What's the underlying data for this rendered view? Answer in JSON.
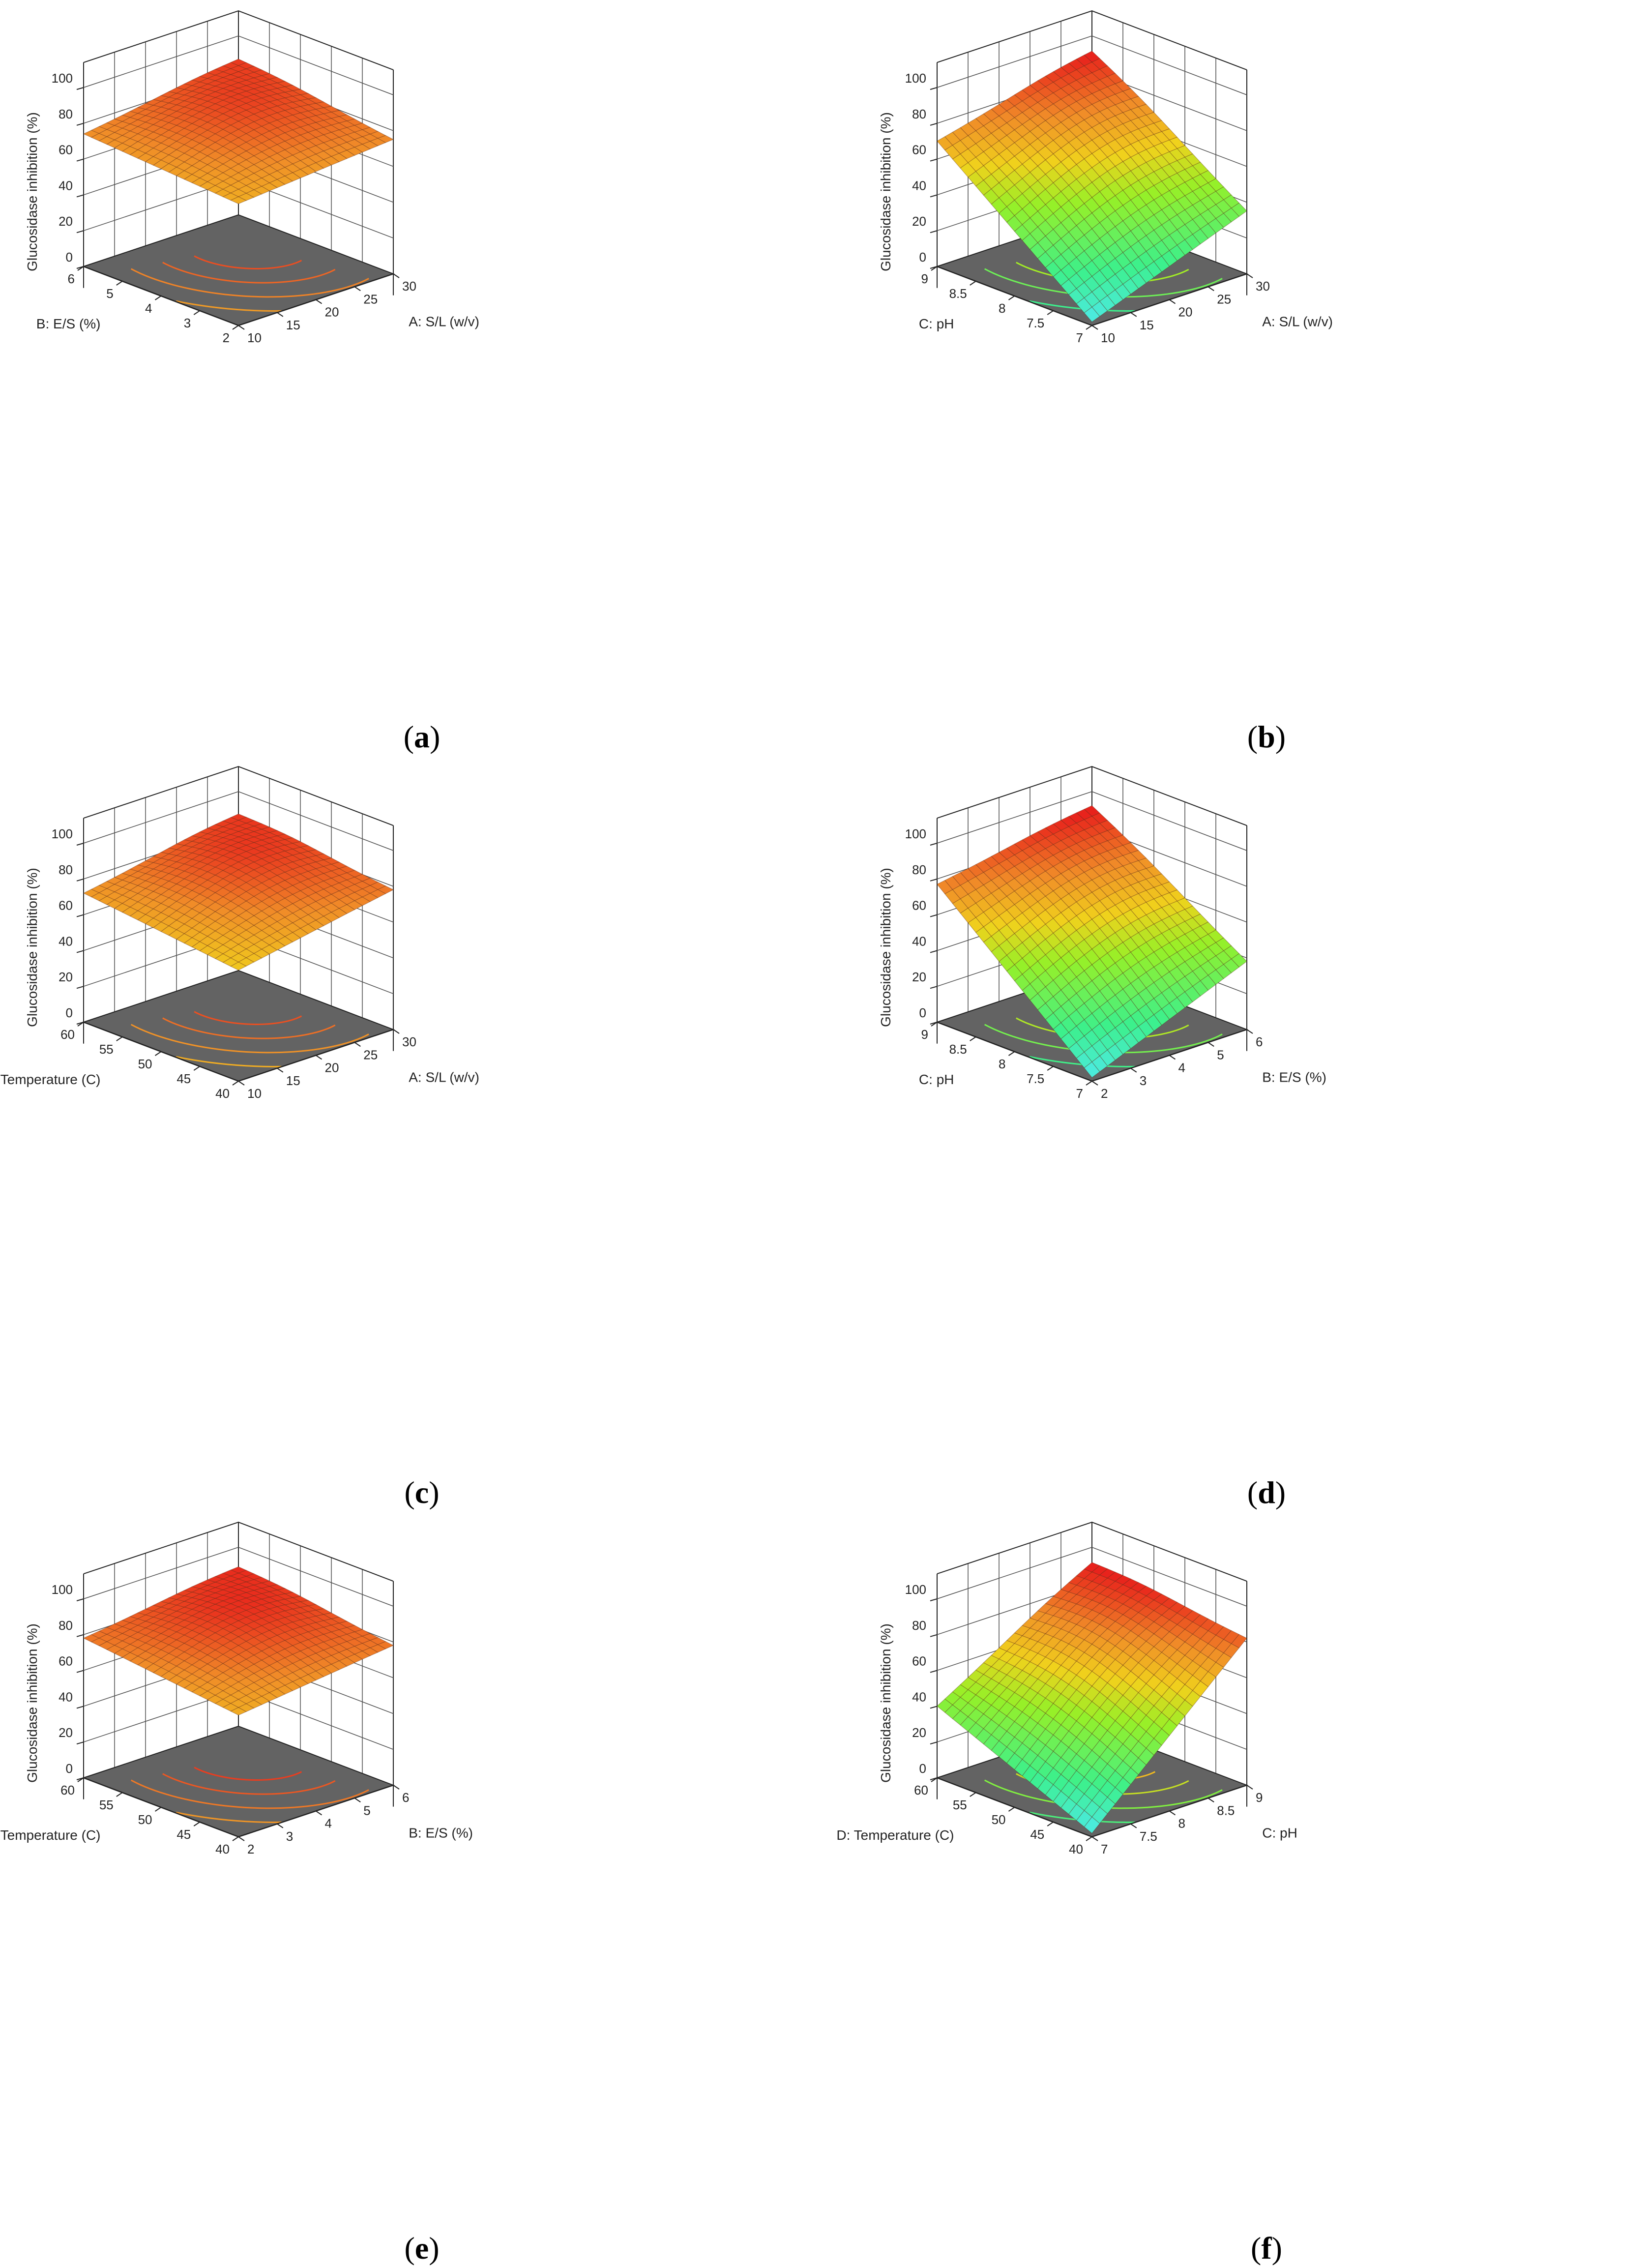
{
  "colors": {
    "floor": "#636363",
    "frame": "#222222",
    "grid": "#4d4d4d",
    "surface_high": "#e8231c",
    "surface_mid": "#f0d21c",
    "surface_low": "#2ff08a",
    "surface_lowest": "#4fe9f2"
  },
  "chart_data": [
    {
      "panel": "a",
      "caption_letter": "a",
      "type": "surface3d",
      "zlabel": "Glucosidase inhibition (%)",
      "zticks": [
        "100",
        "80",
        "60",
        "40",
        "20",
        "0"
      ],
      "zlim": [
        0,
        100
      ],
      "xlabel": "A: S/L (w/v)",
      "xticks": [
        "10",
        "15",
        "20",
        "25",
        "30"
      ],
      "xlim": [
        10,
        30
      ],
      "ylabel": "B: E/S (%)",
      "yticks": [
        "2",
        "3",
        "4",
        "5",
        "6"
      ],
      "ylim": [
        2,
        6
      ],
      "surface_corners": {
        "front": 68,
        "right": 75,
        "back": 86,
        "left": 74
      },
      "peak": 87,
      "contour_levels": 6
    },
    {
      "panel": "b",
      "caption_letter": "b",
      "type": "surface3d",
      "zlabel": "Glucosidase inhibition (%)",
      "zticks": [
        "100",
        "80",
        "60",
        "40",
        "20",
        "0"
      ],
      "zlim": [
        0,
        100
      ],
      "xlabel": "A: S/L (w/v)",
      "xticks": [
        "10",
        "15",
        "20",
        "25",
        "30"
      ],
      "xlim": [
        10,
        30
      ],
      "ylabel": "C: pH",
      "yticks": [
        "7",
        "7.5",
        "8",
        "8.5",
        "9"
      ],
      "ylim": [
        7,
        9
      ],
      "surface_corners": {
        "front": 2,
        "right": 35,
        "back": 90,
        "left": 70
      },
      "peak": 92,
      "contour_levels": 6
    },
    {
      "panel": "c",
      "caption_letter": "c",
      "type": "surface3d",
      "zlabel": "Glucosidase inhibition (%)",
      "zticks": [
        "100",
        "80",
        "60",
        "40",
        "20",
        "0"
      ],
      "zlim": [
        0,
        100
      ],
      "xlabel": "A: S/L (w/v)",
      "xticks": [
        "10",
        "15",
        "20",
        "25",
        "30"
      ],
      "xlim": [
        10,
        30
      ],
      "ylabel": "D: Temperature (C)",
      "yticks": [
        "40",
        "45",
        "50",
        "55",
        "60"
      ],
      "ylim": [
        40,
        60
      ],
      "surface_corners": {
        "front": 62,
        "right": 78,
        "back": 86,
        "left": 72
      },
      "peak": 88,
      "contour_levels": 6
    },
    {
      "panel": "d",
      "caption_letter": "d",
      "type": "surface3d",
      "zlabel": "Glucosidase inhibition (%)",
      "zticks": [
        "100",
        "80",
        "60",
        "40",
        "20",
        "0"
      ],
      "zlim": [
        0,
        100
      ],
      "xlabel": "B: E/S (%)",
      "xticks": [
        "2",
        "3",
        "4",
        "5",
        "6"
      ],
      "xlim": [
        2,
        6
      ],
      "ylabel": "C: pH",
      "yticks": [
        "7",
        "7.5",
        "8",
        "8.5",
        "9"
      ],
      "ylim": [
        7,
        9
      ],
      "surface_corners": {
        "front": 2,
        "right": 38,
        "back": 91,
        "left": 77
      },
      "peak": 92,
      "contour_levels": 6
    },
    {
      "panel": "e",
      "caption_letter": "e",
      "type": "surface3d",
      "zlabel": "Glucosidase inhibition (%)",
      "zticks": [
        "100",
        "80",
        "60",
        "40",
        "20",
        "0"
      ],
      "zlim": [
        0,
        100
      ],
      "xlabel": "B: E/S (%)",
      "xticks": [
        "2",
        "3",
        "4",
        "5",
        "6"
      ],
      "xlim": [
        2,
        6
      ],
      "ylabel": "D: Temperature (C)",
      "yticks": [
        "40",
        "45",
        "50",
        "55",
        "60"
      ],
      "ylim": [
        40,
        60
      ],
      "surface_corners": {
        "front": 68,
        "right": 78,
        "back": 88,
        "left": 78
      },
      "peak": 89,
      "contour_levels": 5
    },
    {
      "panel": "f",
      "caption_letter": "f",
      "type": "surface3d",
      "zlabel": "Glucosidase inhibition (%)",
      "zticks": [
        "100",
        "80",
        "60",
        "40",
        "20",
        "0"
      ],
      "zlim": [
        0,
        100
      ],
      "xlabel": "C: pH",
      "xticks": [
        "7",
        "7.5",
        "8",
        "8.5",
        "9"
      ],
      "xlim": [
        7,
        9
      ],
      "ylabel": "D: Temperature (C)",
      "yticks": [
        "40",
        "45",
        "50",
        "55",
        "60"
      ],
      "ylim": [
        40,
        60
      ],
      "surface_corners": {
        "front": 2,
        "right": 82,
        "back": 90,
        "left": 40
      },
      "peak": 92,
      "contour_levels": 5
    }
  ]
}
